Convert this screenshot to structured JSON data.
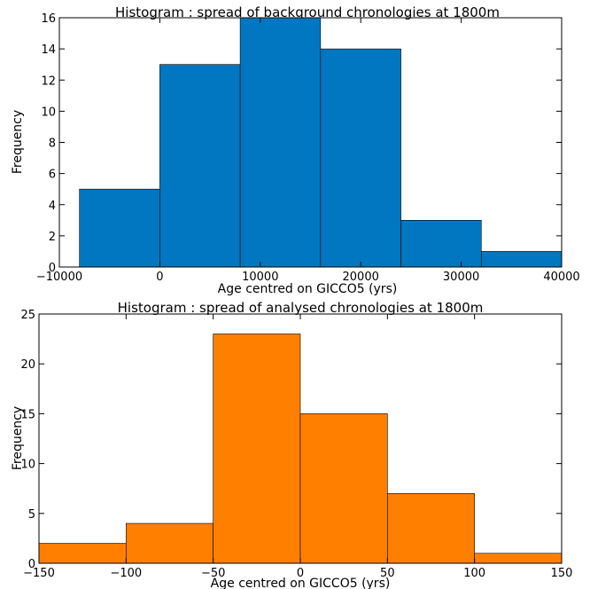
{
  "chart_data": [
    {
      "type": "bar",
      "title": "Histogram : spread of background chronologies at 1800m",
      "xlabel": "Age centred on GICCO5 (yrs)",
      "ylabel": "Frequency",
      "xlim": [
        -10000,
        40000
      ],
      "ylim": [
        0,
        16
      ],
      "xticks": [
        -10000,
        0,
        10000,
        20000,
        30000,
        40000
      ],
      "xtick_labels": [
        "−10000",
        "0",
        "10000",
        "20000",
        "30000",
        "40000"
      ],
      "yticks": [
        0,
        2,
        4,
        6,
        8,
        10,
        12,
        14,
        16
      ],
      "bin_edges": [
        -8000,
        0,
        8000,
        16000,
        24000,
        32000,
        40000
      ],
      "values": [
        5,
        13,
        16,
        14,
        3,
        1
      ],
      "color": "#0077c0"
    },
    {
      "type": "bar",
      "title": "Histogram : spread of analysed chronologies at 1800m",
      "xlabel": "Age centred on GICCO5 (yrs)",
      "ylabel": "Frequency",
      "xlim": [
        -150,
        150
      ],
      "ylim": [
        0,
        25
      ],
      "xticks": [
        -150,
        -100,
        -50,
        0,
        50,
        100,
        150
      ],
      "xtick_labels": [
        "−150",
        "−100",
        "−50",
        "0",
        "50",
        "100",
        "150"
      ],
      "yticks": [
        0,
        5,
        10,
        15,
        20,
        25
      ],
      "bin_edges": [
        -150,
        -100,
        -50,
        0,
        50,
        100,
        150
      ],
      "values": [
        2,
        4,
        23,
        15,
        7,
        1
      ],
      "color": "#ff7f00"
    }
  ]
}
